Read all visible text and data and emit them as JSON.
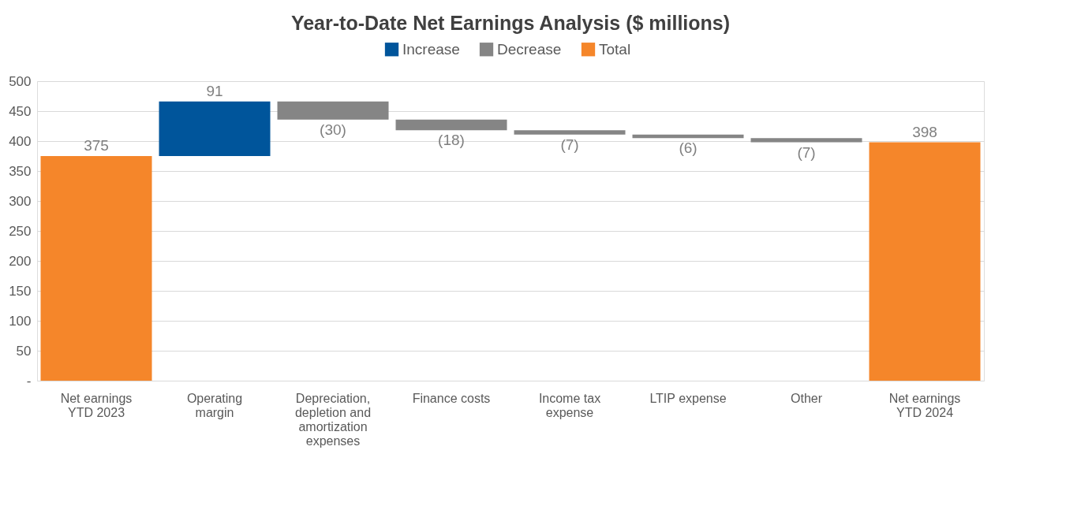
{
  "chart_data": {
    "type": "bar",
    "title": "Year-to-Date Net Earnings Analysis ($ millions)",
    "categories": [
      "Net earnings YTD 2023",
      "Operating margin",
      "Depreciation, depletion and amortization expenses",
      "Finance costs",
      "Income tax expense",
      "LTIP expense",
      "Other",
      "Net earnings YTD 2024"
    ],
    "series": [
      {
        "name": "Increase",
        "color": "#00559b",
        "base": [
          null,
          375,
          null,
          null,
          null,
          null,
          null,
          null
        ],
        "values": [
          null,
          91,
          null,
          null,
          null,
          null,
          null,
          null
        ],
        "value_labels": [
          null,
          "91",
          null,
          null,
          null,
          null,
          null,
          null
        ]
      },
      {
        "name": "Decrease",
        "color": "#858585",
        "base": [
          null,
          null,
          466,
          436,
          418,
          411,
          405,
          null
        ],
        "values": [
          null,
          null,
          -30,
          -18,
          -7,
          -6,
          -7,
          null
        ],
        "value_labels": [
          null,
          null,
          "(30)",
          "(18)",
          "(7)",
          "(6)",
          "(7)",
          null
        ]
      },
      {
        "name": "Total",
        "color": "#f5862a",
        "base": [
          0,
          null,
          null,
          null,
          null,
          null,
          null,
          0
        ],
        "values": [
          375,
          null,
          null,
          null,
          null,
          null,
          null,
          398
        ],
        "value_labels": [
          "375",
          null,
          null,
          null,
          null,
          null,
          null,
          "398"
        ]
      }
    ],
    "ylim": [
      0,
      500
    ],
    "yticks": [
      {
        "value": 0,
        "label": "-"
      },
      50,
      100,
      150,
      200,
      250,
      300,
      350,
      400,
      450,
      500
    ],
    "grid": "y",
    "legend": "top"
  }
}
